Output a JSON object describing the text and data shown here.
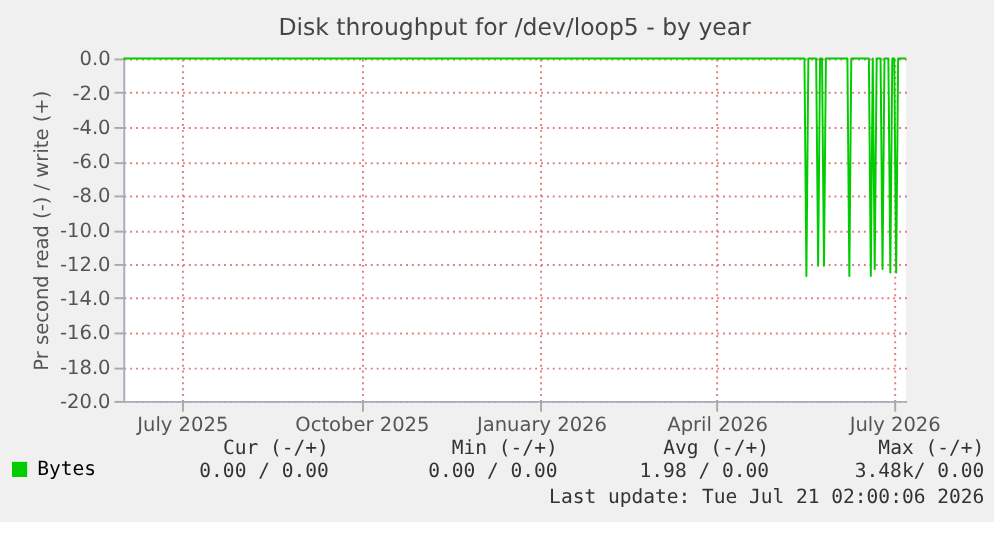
{
  "chart_data": {
    "type": "line",
    "title": "Disk throughput for /dev/loop5 - by year",
    "ylabel": "Pr second read (-) / write (+)",
    "x": [
      "2025-06-01",
      "2026-05-16",
      "2026-05-17",
      "2026-05-18",
      "2026-05-22",
      "2026-05-23",
      "2026-05-24",
      "2026-05-25",
      "2026-05-26",
      "2026-05-27",
      "2026-06-07",
      "2026-06-08",
      "2026-06-09",
      "2026-06-18",
      "2026-06-19",
      "2026-06-20",
      "2026-06-21",
      "2026-06-22",
      "2026-06-24",
      "2026-06-25",
      "2026-06-26",
      "2026-06-28",
      "2026-06-29",
      "2026-06-30",
      "2026-07-01",
      "2026-07-02",
      "2026-07-03",
      "2026-07-07"
    ],
    "series": [
      {
        "name": "Bytes",
        "color": "#00cc00",
        "values": [
          0,
          0,
          -12.7,
          0,
          0,
          -12.1,
          0,
          0,
          -12.1,
          0,
          0,
          -12.7,
          0,
          0,
          -12.7,
          0,
          -12.3,
          0,
          0,
          -12.3,
          0,
          0,
          -12.5,
          0,
          0,
          -12.5,
          0,
          0
        ]
      }
    ],
    "xlim": [
      "2025-06-01",
      "2026-07-07"
    ],
    "xticks": [
      {
        "value": "2025-07-01",
        "label": "July 2025"
      },
      {
        "value": "2025-10-01",
        "label": "October 2025"
      },
      {
        "value": "2026-01-01",
        "label": "January 2026"
      },
      {
        "value": "2026-04-01",
        "label": "April 2026"
      },
      {
        "value": "2026-07-01",
        "label": "July 2026"
      }
    ],
    "ylim": [
      -20,
      0
    ],
    "yticks": [
      {
        "value": 0,
        "label": "0.0"
      },
      {
        "value": -2,
        "label": "-2.0"
      },
      {
        "value": -4,
        "label": "-4.0"
      },
      {
        "value": -6,
        "label": "-6.0"
      },
      {
        "value": -8,
        "label": "-8.0"
      },
      {
        "value": -10,
        "label": "-10.0"
      },
      {
        "value": -12,
        "label": "-12.0"
      },
      {
        "value": -14,
        "label": "-14.0"
      },
      {
        "value": -16,
        "label": "-16.0"
      },
      {
        "value": -18,
        "label": "-18.0"
      },
      {
        "value": -20,
        "label": "-20.0"
      }
    ],
    "grid": true,
    "legend": "bottom left",
    "annotations": [
      "Cur (-/+)",
      "Min (-/+)",
      "Avg (-/+)",
      "Max (-/+)",
      "0.00 /  0.00",
      "0.00 /  0.00",
      "1.98 /  0.00",
      "3.48k/  0.00",
      "Last update: Tue Jul 21 02:00:06 2026"
    ]
  }
}
